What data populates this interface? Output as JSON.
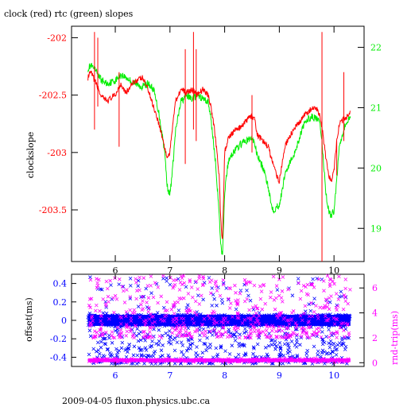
{
  "title": "clock (red) rtc (green) slopes",
  "footer": "2009-04-05 fluxon.physics.ubc.ca",
  "colors": {
    "clock": "#ff0000",
    "rtc": "#00ee00",
    "offset": "#0000ff",
    "rndtrip": "#ff00ff",
    "axis": "#000000"
  },
  "chart_data": [
    {
      "type": "line",
      "title": "clock (red) rtc (green) slopes",
      "ylabel": "clockslope",
      "xlim": [
        5.2,
        10.55
      ],
      "ylim": [
        -203.95,
        -201.9
      ],
      "y2lim": [
        18.45,
        22.35
      ],
      "x_ticks": [
        6,
        7,
        8,
        9,
        10
      ],
      "y_ticks": [
        -202,
        -202.5,
        -203,
        -203.5
      ],
      "y2_ticks": [
        19,
        20,
        21,
        22
      ],
      "series": [
        {
          "name": "clock",
          "axis": "left",
          "x": [
            5.5,
            5.55,
            5.65,
            5.75,
            5.85,
            6.0,
            6.1,
            6.2,
            6.35,
            6.5,
            6.6,
            6.7,
            6.8,
            6.9,
            6.95,
            7.0,
            7.05,
            7.1,
            7.2,
            7.3,
            7.4,
            7.5,
            7.6,
            7.7,
            7.75,
            7.8,
            7.85,
            7.9,
            7.93,
            7.96,
            8.0,
            8.05,
            8.1,
            8.2,
            8.3,
            8.4,
            8.5,
            8.55,
            8.6,
            8.7,
            8.8,
            8.85,
            8.9,
            8.95,
            9.0,
            9.05,
            9.1,
            9.2,
            9.3,
            9.4,
            9.5,
            9.6,
            9.7,
            9.75,
            9.8,
            9.85,
            9.9,
            9.95,
            10.0,
            10.05,
            10.1,
            10.2,
            10.3
          ],
          "y": [
            -202.35,
            -202.3,
            -202.4,
            -202.52,
            -202.55,
            -202.5,
            -202.4,
            -202.48,
            -202.38,
            -202.35,
            -202.45,
            -202.6,
            -202.75,
            -202.95,
            -203.05,
            -203.0,
            -202.75,
            -202.55,
            -202.45,
            -202.48,
            -202.45,
            -202.5,
            -202.45,
            -202.5,
            -202.6,
            -202.75,
            -202.95,
            -203.2,
            -203.6,
            -203.8,
            -203.0,
            -202.9,
            -202.85,
            -202.8,
            -202.78,
            -202.72,
            -202.68,
            -202.72,
            -202.85,
            -202.9,
            -202.95,
            -203.05,
            -203.1,
            -203.2,
            -203.25,
            -203.1,
            -202.95,
            -202.85,
            -202.78,
            -202.72,
            -202.65,
            -202.62,
            -202.62,
            -202.7,
            -202.85,
            -203.05,
            -203.2,
            -203.25,
            -203.15,
            -202.9,
            -202.75,
            -202.7,
            -202.65
          ]
        },
        {
          "name": "rtc",
          "axis": "right",
          "x": [
            5.5,
            5.55,
            5.65,
            5.75,
            5.85,
            6.0,
            6.1,
            6.2,
            6.35,
            6.5,
            6.6,
            6.7,
            6.8,
            6.9,
            6.95,
            7.0,
            7.05,
            7.1,
            7.2,
            7.3,
            7.4,
            7.5,
            7.6,
            7.7,
            7.75,
            7.8,
            7.85,
            7.9,
            7.93,
            7.96,
            8.0,
            8.05,
            8.1,
            8.2,
            8.3,
            8.4,
            8.5,
            8.55,
            8.6,
            8.7,
            8.8,
            8.85,
            8.9,
            8.95,
            9.0,
            9.05,
            9.1,
            9.2,
            9.3,
            9.4,
            9.5,
            9.6,
            9.7,
            9.75,
            9.8,
            9.85,
            9.9,
            9.95,
            10.0,
            10.05,
            10.1,
            10.2,
            10.3
          ],
          "y": [
            21.65,
            21.7,
            21.6,
            21.45,
            21.4,
            21.45,
            21.55,
            21.5,
            21.4,
            21.35,
            21.4,
            21.3,
            20.9,
            20.3,
            19.7,
            19.55,
            20.0,
            20.6,
            21.1,
            21.2,
            21.15,
            21.2,
            21.15,
            21.1,
            20.8,
            20.4,
            19.9,
            19.2,
            18.7,
            18.55,
            19.6,
            20.0,
            20.2,
            20.3,
            20.4,
            20.45,
            20.5,
            20.4,
            20.2,
            20.0,
            19.7,
            19.4,
            19.3,
            19.35,
            19.4,
            19.6,
            19.9,
            20.1,
            20.3,
            20.6,
            20.8,
            20.85,
            20.8,
            20.7,
            20.2,
            19.6,
            19.3,
            19.2,
            19.3,
            19.8,
            20.4,
            20.7,
            20.85
          ]
        }
      ],
      "spikes": [
        {
          "series": "clock",
          "x": 5.62,
          "y_top": -201.95,
          "y_bottom": -202.8
        },
        {
          "series": "clock",
          "x": 5.68,
          "y_top": -202.0,
          "y_bottom": -202.6
        },
        {
          "series": "clock",
          "x": 6.07,
          "y_top": -202.3,
          "y_bottom": -202.95
        },
        {
          "series": "clock",
          "x": 7.28,
          "y_top": -202.1,
          "y_bottom": -203.1
        },
        {
          "series": "clock",
          "x": 7.43,
          "y_top": -201.95,
          "y_bottom": -202.8
        },
        {
          "series": "clock",
          "x": 7.48,
          "y_top": -202.1,
          "y_bottom": -202.9
        },
        {
          "series": "clock",
          "x": 8.5,
          "y_top": -202.5,
          "y_bottom": -203.0
        },
        {
          "series": "clock",
          "x": 9.78,
          "y_top": -201.95,
          "y_bottom": -203.95
        },
        {
          "series": "clock",
          "x": 10.05,
          "y_top": -202.9,
          "y_bottom": -203.2
        },
        {
          "series": "clock",
          "x": 10.18,
          "y_top": -202.3,
          "y_bottom": -202.9
        }
      ]
    },
    {
      "type": "scatter",
      "ylabel": "offset(ms)",
      "y2label": "rnd-trip(ms)",
      "xlim": [
        5.2,
        10.55
      ],
      "ylim": [
        -0.5,
        0.5
      ],
      "y2lim": [
        -0.3,
        7.1
      ],
      "x_ticks": [
        6,
        7,
        8,
        9,
        10
      ],
      "y_ticks": [
        0.4,
        0.2,
        0,
        -0.2,
        -0.4
      ],
      "y2_ticks": [
        0,
        2,
        4,
        6
      ],
      "marker": "x",
      "series": [
        {
          "name": "offset",
          "axis": "left",
          "x_range": [
            5.5,
            10.3
          ],
          "dense_band": [
            -0.06,
            0.06
          ],
          "spread": [
            -0.47,
            0.47
          ]
        },
        {
          "name": "rnd-trip",
          "axis": "right",
          "x_range": [
            5.5,
            10.3
          ],
          "dense_band": [
            0.05,
            0.35
          ],
          "spread": [
            2.0,
            7.0
          ]
        }
      ]
    }
  ]
}
